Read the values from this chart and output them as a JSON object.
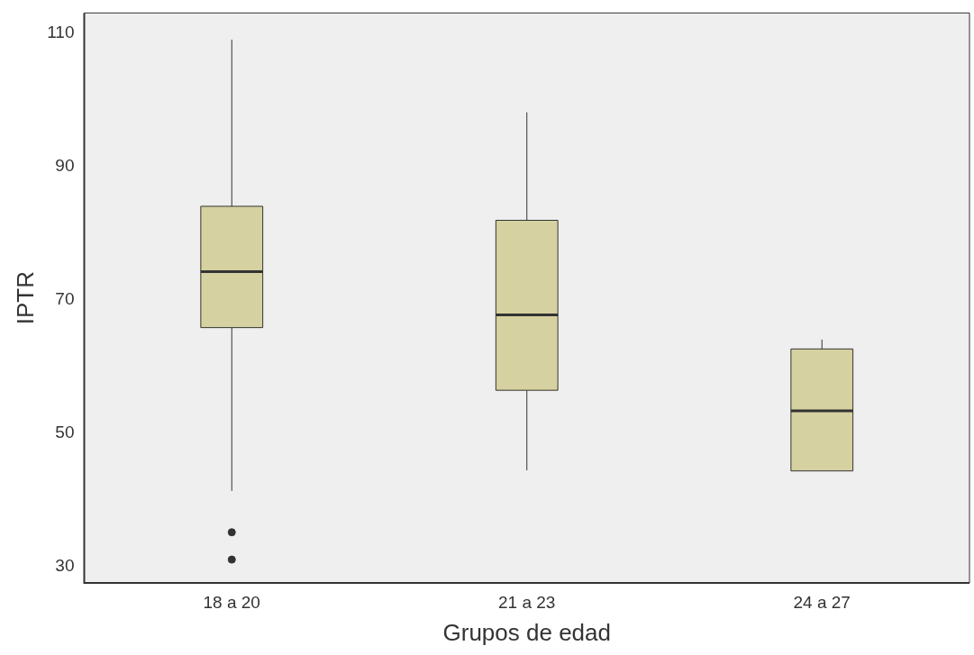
{
  "chart_data": {
    "type": "box",
    "xlabel": "Grupos de edad",
    "ylabel": "IPTR",
    "categories": [
      "18 a 20",
      "21 a 23",
      "24 a 27"
    ],
    "color": "#d6d1a0",
    "boxes": [
      {
        "low": 41.3,
        "q1": 65.8,
        "median": 74.2,
        "q3": 84,
        "high": 109,
        "outliers": [
          35.1,
          31
        ]
      },
      {
        "low": 44.4,
        "q1": 56.4,
        "median": 67.7,
        "q3": 81.9,
        "high": 98.1
      },
      {
        "low": 44.3,
        "q1": 44.3,
        "median": 53.3,
        "q3": 62.6,
        "high": 64
      }
    ],
    "ylim": [
      27.5,
      113
    ],
    "yticks": [
      30,
      50,
      70,
      90,
      110
    ]
  }
}
